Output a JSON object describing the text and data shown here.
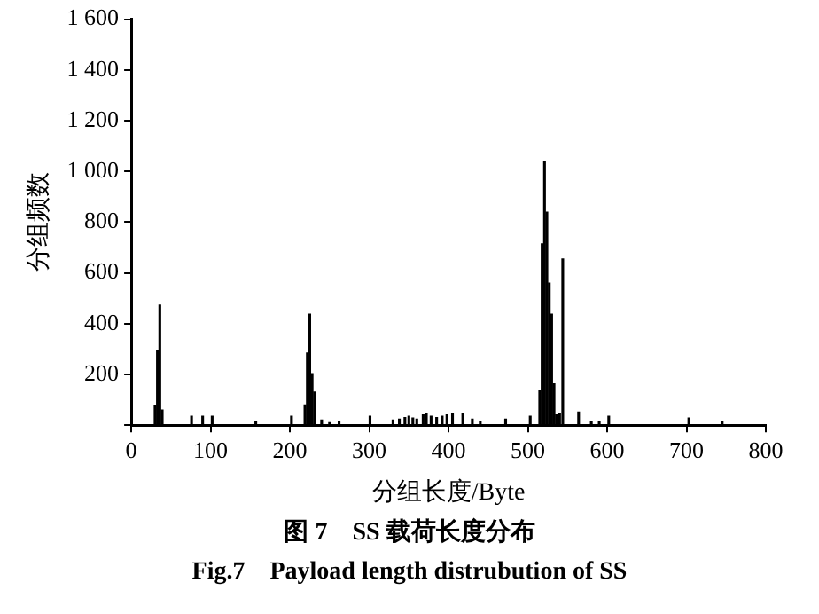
{
  "chart_data": {
    "type": "bar",
    "xlabel": "分组长度/Byte",
    "ylabel": "分组频数",
    "x": [
      30,
      33,
      36,
      39,
      76,
      90,
      102,
      157,
      202,
      219,
      222,
      225,
      228,
      231,
      240,
      250,
      262,
      301,
      330,
      338,
      345,
      350,
      355,
      360,
      368,
      372,
      378,
      385,
      392,
      398,
      405,
      418,
      430,
      440,
      472,
      503,
      515,
      518,
      521,
      524,
      527,
      530,
      533,
      536,
      540,
      544,
      564,
      580,
      590,
      602,
      703,
      745
    ],
    "values": [
      76,
      293,
      473,
      60,
      35,
      35,
      35,
      12,
      35,
      80,
      284,
      437,
      203,
      130,
      20,
      10,
      12,
      35,
      20,
      24,
      30,
      35,
      28,
      24,
      40,
      47,
      35,
      30,
      35,
      40,
      45,
      47,
      24,
      12,
      24,
      35,
      135,
      714,
      1038,
      839,
      560,
      437,
      163,
      40,
      47,
      655,
      52,
      15,
      12,
      35,
      28,
      12
    ],
    "color": "#000000",
    "xlim": [
      0,
      800
    ],
    "xticks": [
      0,
      100,
      200,
      300,
      400,
      500,
      600,
      700,
      800
    ],
    "ylim": [
      0,
      1600
    ],
    "yticks": [
      {
        "value": 0,
        "label": null
      },
      200,
      400,
      600,
      800,
      {
        "value": 1000,
        "label": "1 000"
      },
      {
        "value": 1200,
        "label": "1 200"
      },
      {
        "value": 1400,
        "label": "1 400"
      },
      {
        "value": 1600,
        "label": "1 600"
      }
    ],
    "grid": false,
    "legend": false,
    "annotations": [
      "图 7　SS 载荷长度分布",
      "Fig.7　Payload length distrubution of SS"
    ]
  }
}
